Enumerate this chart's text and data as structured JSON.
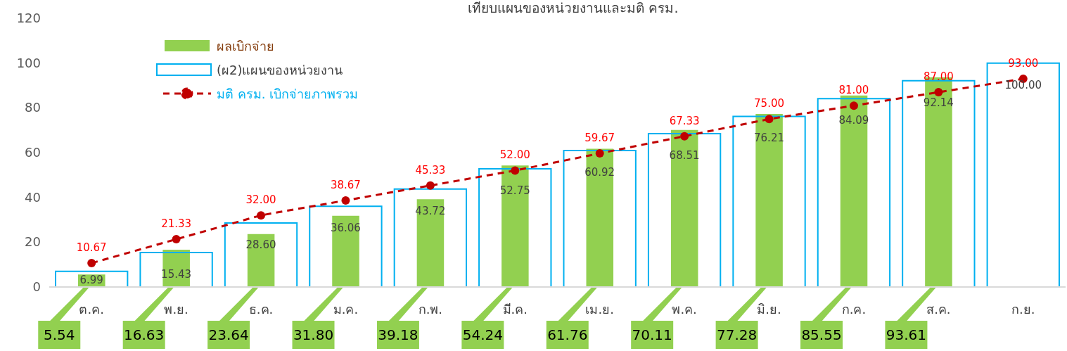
{
  "chart_data": {
    "type": "bar",
    "title": "เทียบแผนของหน่วยงานและมติ ครม.",
    "categories": [
      "ต.ค.",
      "พ.ย.",
      "ธ.ค.",
      "ม.ค.",
      "ก.พ.",
      "มี.ค.",
      "เม.ย.",
      "พ.ค.",
      "มิ.ย.",
      "ก.ค.",
      "ส.ค.",
      "ก.ย."
    ],
    "series": [
      {
        "name": "ผลเบิกจ่าย",
        "color": "#92d050",
        "values": [
          5.54,
          16.63,
          23.64,
          31.8,
          39.18,
          54.24,
          61.76,
          70.11,
          77.28,
          85.55,
          93.61,
          null
        ],
        "value_labels": [
          "5.54",
          "16.63",
          "23.64",
          "31.80",
          "39.18",
          "54.24",
          "61.76",
          "70.11",
          "77.28",
          "85.55",
          "93.61",
          null
        ]
      },
      {
        "name": "(ผ2)แผนของหน่วยงาน",
        "color": "#00b0f0",
        "values": [
          6.99,
          15.43,
          28.6,
          36.06,
          43.72,
          52.75,
          60.92,
          68.51,
          76.21,
          84.09,
          92.14,
          100
        ],
        "value_labels": [
          "6.99",
          "15.43",
          "28.60",
          "36.06",
          "43.72",
          "52.75",
          "60.92",
          "68.51",
          "76.21",
          "84.09",
          "92.14",
          "100.00"
        ]
      },
      {
        "name": "มติ ครม. เบิกจ่ายภาพรวม",
        "type": "line",
        "color": "#c00000",
        "marker": "circle",
        "line_style": "dashed",
        "values": [
          10.67,
          21.33,
          32,
          38.67,
          45.33,
          52,
          59.67,
          67.33,
          75,
          81,
          87,
          93
        ],
        "value_labels": [
          "10.67",
          "21.33",
          "32.00",
          "38.67",
          "45.33",
          "52.00",
          "59.67",
          "67.33",
          "75.00",
          "81.00",
          "87.00",
          "93.00"
        ]
      }
    ],
    "ylim": [
      0,
      120
    ],
    "yticks": [
      0,
      20,
      40,
      60,
      80,
      100,
      120
    ],
    "legend": "top left"
  }
}
